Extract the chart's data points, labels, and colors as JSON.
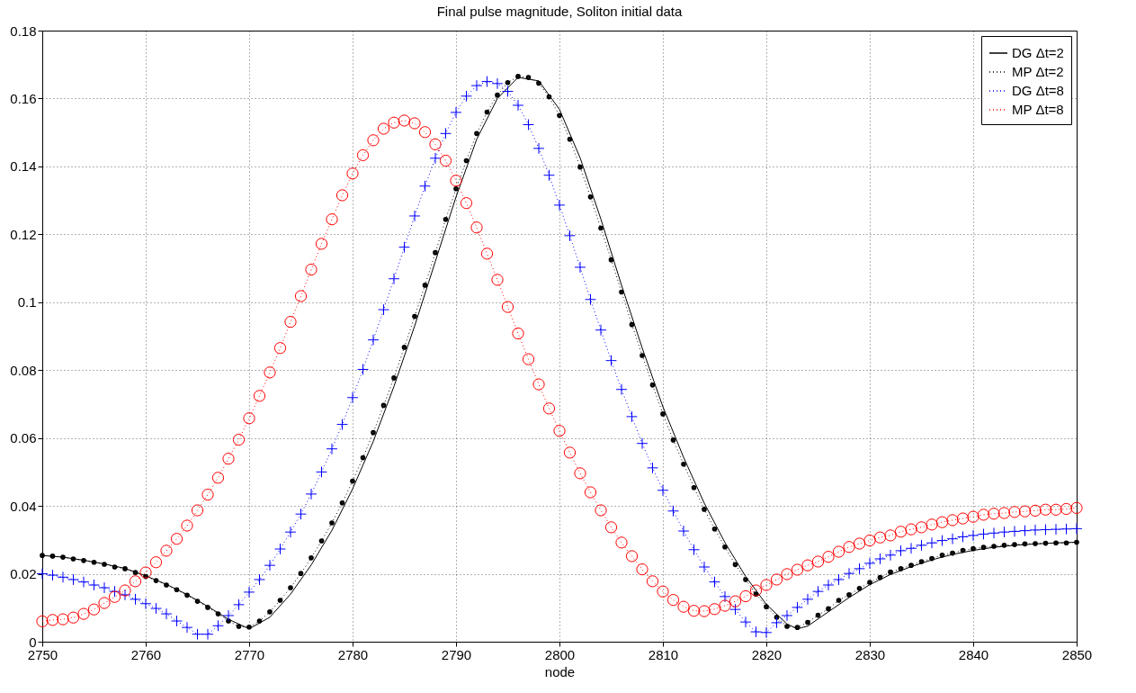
{
  "chart_data": {
    "type": "line",
    "title": "Final pulse magnitude, Soliton initial data",
    "xlabel": "node",
    "x": [
      2750,
      2751,
      2752,
      2753,
      2754,
      2755,
      2756,
      2757,
      2758,
      2759,
      2760,
      2761,
      2762,
      2763,
      2764,
      2765,
      2766,
      2767,
      2768,
      2769,
      2770,
      2771,
      2772,
      2773,
      2774,
      2775,
      2776,
      2777,
      2778,
      2779,
      2780,
      2781,
      2782,
      2783,
      2784,
      2785,
      2786,
      2787,
      2788,
      2789,
      2790,
      2791,
      2792,
      2793,
      2794,
      2795,
      2796,
      2797,
      2798,
      2799,
      2800,
      2801,
      2802,
      2803,
      2804,
      2805,
      2806,
      2807,
      2808,
      2809,
      2810,
      2811,
      2812,
      2813,
      2814,
      2815,
      2816,
      2817,
      2818,
      2819,
      2820,
      2821,
      2822,
      2823,
      2824,
      2825,
      2826,
      2827,
      2828,
      2829,
      2830,
      2831,
      2832,
      2833,
      2834,
      2835,
      2836,
      2837,
      2838,
      2839,
      2840,
      2841,
      2842,
      2843,
      2844,
      2845,
      2846,
      2847,
      2848,
      2849,
      2850
    ],
    "series": [
      {
        "name": "DG Δt=2",
        "color": "#000000",
        "line_style": "solid",
        "marker": "none",
        "x": [
          2750,
          2752,
          2754,
          2756,
          2758,
          2760,
          2762,
          2764,
          2766,
          2768,
          2770,
          2772,
          2774,
          2776,
          2778,
          2780,
          2782,
          2784,
          2786,
          2788,
          2790,
          2792,
          2794,
          2796,
          2798,
          2800,
          2802,
          2804,
          2806,
          2808,
          2810,
          2812,
          2814,
          2816,
          2818,
          2820,
          2822,
          2823,
          2824,
          2826,
          2828,
          2830,
          2832,
          2834,
          2836,
          2838,
          2840,
          2842,
          2844,
          2846,
          2848,
          2850
        ],
        "values": [
          0.0254,
          0.0249,
          0.024,
          0.0229,
          0.0216,
          0.0194,
          0.0169,
          0.0139,
          0.0104,
          0.0066,
          0.0038,
          0.0072,
          0.014,
          0.0226,
          0.0328,
          0.045,
          0.059,
          0.0752,
          0.093,
          0.112,
          0.131,
          0.148,
          0.16,
          0.1662,
          0.1652,
          0.1568,
          0.1425,
          0.1245,
          0.105,
          0.0865,
          0.0692,
          0.0543,
          0.0408,
          0.0292,
          0.0192,
          0.011,
          0.0052,
          0.0038,
          0.0046,
          0.0088,
          0.013,
          0.0168,
          0.0198,
          0.0221,
          0.0241,
          0.0257,
          0.0269,
          0.0278,
          0.0284,
          0.0288,
          0.0291,
          0.0293
        ]
      },
      {
        "name": "MP Δt=2",
        "color": "#000000",
        "line_style": "dotted",
        "marker": "circle",
        "values": [
          0.0254,
          0.0252,
          0.0249,
          0.0244,
          0.0239,
          0.0234,
          0.0228,
          0.022,
          0.0215,
          0.0204,
          0.0192,
          0.018,
          0.0167,
          0.0153,
          0.0137,
          0.0119,
          0.0101,
          0.0082,
          0.0061,
          0.0045,
          0.0043,
          0.0061,
          0.0088,
          0.0122,
          0.0159,
          0.0201,
          0.0247,
          0.0297,
          0.035,
          0.0409,
          0.0473,
          0.0542,
          0.0616,
          0.0696,
          0.0777,
          0.0867,
          0.0958,
          0.105,
          0.1146,
          0.1244,
          0.1334,
          0.1417,
          0.1497,
          0.156,
          0.161,
          0.1647,
          0.1665,
          0.1662,
          0.1645,
          0.1605,
          0.155,
          0.148,
          0.1398,
          0.131,
          0.1218,
          0.1125,
          0.103,
          0.0934,
          0.0843,
          0.0756,
          0.0671,
          0.0594,
          0.0523,
          0.0454,
          0.039,
          0.0332,
          0.0279,
          0.0227,
          0.0183,
          0.014,
          0.0103,
          0.0072,
          0.0045,
          0.0042,
          0.0057,
          0.0078,
          0.0097,
          0.0122,
          0.0138,
          0.0157,
          0.0175,
          0.0189,
          0.0205,
          0.0215,
          0.0225,
          0.0236,
          0.0245,
          0.0255,
          0.0261,
          0.0269,
          0.0274,
          0.0278,
          0.0281,
          0.0284,
          0.0286,
          0.0288,
          0.0289,
          0.029,
          0.0291,
          0.0291,
          0.0293
        ]
      },
      {
        "name": "DG Δt=8",
        "color": "#0000ff",
        "line_style": "dotted",
        "marker": "cross",
        "values": [
          0.02,
          0.0196,
          0.019,
          0.0183,
          0.0176,
          0.0167,
          0.0159,
          0.0148,
          0.0138,
          0.0125,
          0.0112,
          0.0098,
          0.0082,
          0.0061,
          0.0042,
          0.0022,
          0.0022,
          0.0047,
          0.0077,
          0.0109,
          0.0146,
          0.0183,
          0.0225,
          0.0273,
          0.0323,
          0.0376,
          0.0435,
          0.05,
          0.0568,
          0.064,
          0.0719,
          0.0802,
          0.0889,
          0.0978,
          0.1069,
          0.1162,
          0.1254,
          0.1342,
          0.1424,
          0.1497,
          0.1559,
          0.1607,
          0.1638,
          0.165,
          0.1644,
          0.1621,
          0.158,
          0.1523,
          0.1453,
          0.1374,
          0.1286,
          0.1196,
          0.1103,
          0.1008,
          0.0918,
          0.0828,
          0.0743,
          0.0663,
          0.0584,
          0.0512,
          0.0446,
          0.0385,
          0.0326,
          0.0271,
          0.022,
          0.0176,
          0.0133,
          0.0095,
          0.0058,
          0.0029,
          0.0027,
          0.0056,
          0.0077,
          0.0101,
          0.0125,
          0.0148,
          0.0167,
          0.0183,
          0.0201,
          0.0215,
          0.0231,
          0.0244,
          0.0255,
          0.0268,
          0.0275,
          0.0284,
          0.0291,
          0.0298,
          0.0303,
          0.0309,
          0.0313,
          0.0317,
          0.032,
          0.0323,
          0.0325,
          0.0327,
          0.0329,
          0.033,
          0.0331,
          0.0332,
          0.0333
        ]
      },
      {
        "name": "MP Δt=8",
        "color": "#ff0000",
        "line_style": "dotted",
        "marker": "circle",
        "values": [
          0.006,
          0.0064,
          0.0066,
          0.0071,
          0.0082,
          0.0095,
          0.0114,
          0.0132,
          0.0151,
          0.0178,
          0.0204,
          0.0234,
          0.0268,
          0.0303,
          0.0342,
          0.0387,
          0.0433,
          0.0483,
          0.0539,
          0.0595,
          0.0658,
          0.0724,
          0.0793,
          0.0865,
          0.0942,
          0.1018,
          0.1096,
          0.1172,
          0.1244,
          0.1315,
          0.1379,
          0.1433,
          0.1477,
          0.1511,
          0.1529,
          0.1535,
          0.1527,
          0.1501,
          0.1465,
          0.1417,
          0.1358,
          0.1292,
          0.122,
          0.1143,
          0.1066,
          0.0986,
          0.0908,
          0.0832,
          0.0758,
          0.0687,
          0.0621,
          0.0557,
          0.0496,
          0.044,
          0.0387,
          0.0337,
          0.0292,
          0.0252,
          0.0213,
          0.0178,
          0.0148,
          0.0123,
          0.0103,
          0.0091,
          0.009,
          0.0096,
          0.0106,
          0.0119,
          0.0134,
          0.0151,
          0.0167,
          0.0183,
          0.0199,
          0.0212,
          0.0225,
          0.0236,
          0.025,
          0.0265,
          0.0279,
          0.0289,
          0.0298,
          0.0307,
          0.0313,
          0.0324,
          0.0331,
          0.0337,
          0.0345,
          0.0352,
          0.0358,
          0.0363,
          0.0368,
          0.0374,
          0.0377,
          0.0379,
          0.0382,
          0.0384,
          0.0386,
          0.0389,
          0.0389,
          0.0391,
          0.0394
        ]
      }
    ],
    "xlim": [
      2750,
      2850
    ],
    "xticks": [
      2750,
      2760,
      2770,
      2780,
      2790,
      2800,
      2810,
      2820,
      2830,
      2840,
      2850
    ],
    "ylim": [
      0,
      0.18
    ],
    "yticks": [
      0,
      0.02,
      0.04,
      0.06,
      0.08,
      0.1,
      0.12,
      0.14,
      0.16,
      0.18
    ],
    "grid": true,
    "legend": "top right"
  }
}
